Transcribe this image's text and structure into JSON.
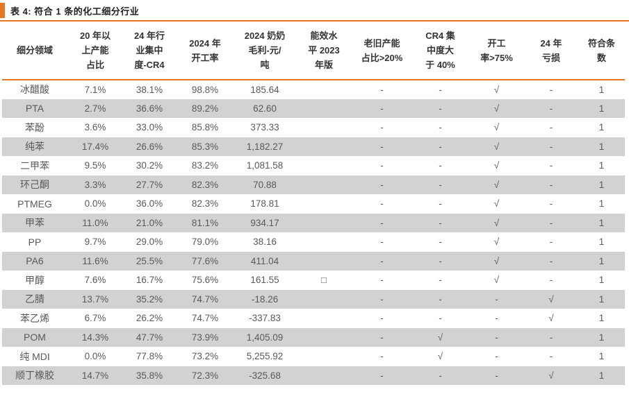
{
  "title": "表 4: 符合 1 条的化工细分行业",
  "colors": {
    "accent": "#E87722",
    "zebra_row": "#D2D2D2",
    "title_text": "#1F1F1F",
    "header_text": "#333333",
    "body_text": "#595959"
  },
  "symbols": {
    "check": "√",
    "dash": "-",
    "empty_box": "□"
  },
  "table": {
    "columns": [
      "细分领域",
      "20 年以\n上产能\n占比",
      "24 年行\n业集中\n度-CR4",
      "2024 年\n开工率",
      "2024 奶奶\n毛利-元/\n吨",
      "能效水\n平 2023\n年版",
      "老旧产能\n占比>20%",
      "CR4 集\n中度大\n于 40%",
      "开工\n率>75%",
      "24 年\n亏损",
      "符合条\n数"
    ],
    "rows": [
      [
        "冰醋酸",
        "7.1%",
        "38.1%",
        "98.8%",
        "185.64",
        "",
        "-",
        "-",
        "√",
        "-",
        "1"
      ],
      [
        "PTA",
        "2.7%",
        "36.6%",
        "89.2%",
        "62.60",
        "",
        "-",
        "-",
        "√",
        "-",
        "1"
      ],
      [
        "苯酚",
        "3.6%",
        "33.0%",
        "85.8%",
        "373.33",
        "",
        "-",
        "-",
        "√",
        "-",
        "1"
      ],
      [
        "纯苯",
        "17.4%",
        "26.6%",
        "85.3%",
        "1,182.27",
        "",
        "-",
        "-",
        "√",
        "-",
        "1"
      ],
      [
        "二甲苯",
        "9.5%",
        "30.2%",
        "83.2%",
        "1,081.58",
        "",
        "-",
        "-",
        "√",
        "-",
        "1"
      ],
      [
        "环己酮",
        "3.3%",
        "27.7%",
        "82.3%",
        "70.88",
        "",
        "-",
        "-",
        "√",
        "-",
        "1"
      ],
      [
        "PTMEG",
        "0.0%",
        "36.0%",
        "82.3%",
        "178.81",
        "",
        "-",
        "-",
        "√",
        "-",
        "1"
      ],
      [
        "甲苯",
        "11.0%",
        "21.0%",
        "81.1%",
        "934.17",
        "",
        "-",
        "-",
        "√",
        "-",
        "1"
      ],
      [
        "PP",
        "9.7%",
        "29.0%",
        "79.0%",
        "38.16",
        "",
        "-",
        "-",
        "√",
        "-",
        "1"
      ],
      [
        "PA6",
        "11.6%",
        "25.5%",
        "77.6%",
        "411.04",
        "",
        "-",
        "-",
        "√",
        "-",
        "1"
      ],
      [
        "甲醇",
        "7.6%",
        "16.7%",
        "75.6%",
        "161.55",
        "□",
        "-",
        "-",
        "√",
        "-",
        "1"
      ],
      [
        "乙腈",
        "13.7%",
        "35.2%",
        "74.7%",
        "-18.26",
        "",
        "-",
        "-",
        "-",
        "√",
        "1"
      ],
      [
        "苯乙烯",
        "6.7%",
        "26.2%",
        "74.7%",
        "-337.83",
        "",
        "-",
        "-",
        "-",
        "√",
        "1"
      ],
      [
        "POM",
        "14.3%",
        "47.7%",
        "73.9%",
        "1,405.09",
        "",
        "-",
        "√",
        "-",
        "-",
        "1"
      ],
      [
        "纯 MDI",
        "0.0%",
        "77.8%",
        "73.2%",
        "5,255.92",
        "",
        "-",
        "√",
        "-",
        "-",
        "1"
      ],
      [
        "顺丁橡胶",
        "14.7%",
        "35.8%",
        "72.3%",
        "-325.68",
        "",
        "-",
        "-",
        "-",
        "√",
        "1"
      ]
    ]
  }
}
